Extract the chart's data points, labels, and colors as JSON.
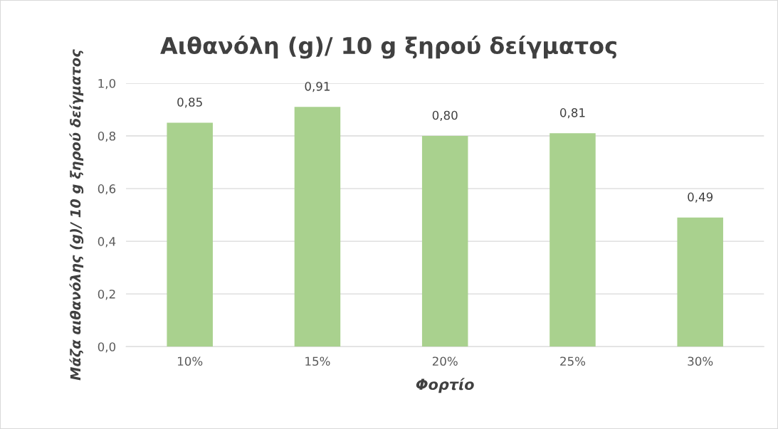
{
  "chart_data": {
    "type": "bar",
    "title": "Αιθανόλη (g)/ 10 g ξηρού δείγματος",
    "xlabel": "Φορτίο",
    "ylabel": "Μάζα αιθανόλης (g)/ 10 g ξηρού δείγματος",
    "categories": [
      "10%",
      "15%",
      "20%",
      "25%",
      "30%"
    ],
    "values": [
      0.85,
      0.91,
      0.8,
      0.81,
      0.49
    ],
    "value_labels": [
      "0,85",
      "0,91",
      "0,80",
      "0,81",
      "0,49"
    ],
    "color": "#a9d18e",
    "ylim": [
      0,
      1
    ],
    "yticks": [
      {
        "value": 0,
        "label": "0,0"
      },
      {
        "value": 0.2,
        "label": "0,2"
      },
      {
        "value": 0.4,
        "label": "0,4"
      },
      {
        "value": 0.6,
        "label": "0,6"
      },
      {
        "value": 0.8,
        "label": "0,8"
      },
      {
        "value": 1,
        "label": "1,0"
      }
    ],
    "grid": "y",
    "legend": false
  }
}
